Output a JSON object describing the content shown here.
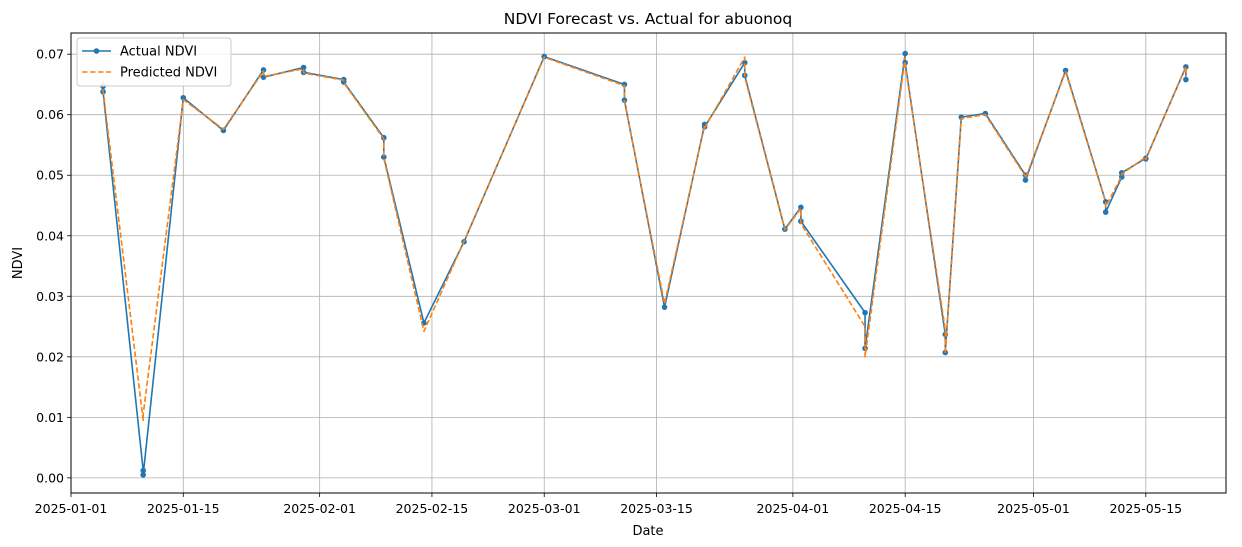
{
  "chart_data": {
    "type": "line",
    "title": "NDVI Forecast vs. Actual for abuonoq",
    "xlabel": "Date",
    "ylabel": "NDVI",
    "xlim": [
      "2025-01-01",
      "2025-05-25"
    ],
    "ylim": [
      -0.0025,
      0.0735
    ],
    "xticks": [
      "2025-01-01",
      "2025-01-15",
      "2025-02-01",
      "2025-02-15",
      "2025-03-01",
      "2025-03-15",
      "2025-04-01",
      "2025-04-15",
      "2025-05-01",
      "2025-05-15"
    ],
    "yticks": [
      0.0,
      0.01,
      0.02,
      0.03,
      0.04,
      0.05,
      0.06,
      0.07
    ],
    "ytick_labels": [
      "0.00",
      "0.01",
      "0.02",
      "0.03",
      "0.04",
      "0.05",
      "0.06",
      "0.07"
    ],
    "grid": true,
    "legend_position": "top-left",
    "series": [
      {
        "name": "Actual NDVI",
        "color": "#1f77b4",
        "style": "solid",
        "marker": "circle",
        "points": [
          [
            "2025-01-05",
            0.0647
          ],
          [
            "2025-01-05",
            0.0638
          ],
          [
            "2025-01-10",
            0.0012
          ],
          [
            "2025-01-10",
            0.0005
          ],
          [
            "2025-01-15",
            0.0628
          ],
          [
            "2025-01-20",
            0.0574
          ],
          [
            "2025-01-25",
            0.0674
          ],
          [
            "2025-01-25",
            0.0662
          ],
          [
            "2025-01-30",
            0.0678
          ],
          [
            "2025-01-30",
            0.067
          ],
          [
            "2025-02-04",
            0.0658
          ],
          [
            "2025-02-04",
            0.0654
          ],
          [
            "2025-02-09",
            0.0562
          ],
          [
            "2025-02-09",
            0.053
          ],
          [
            "2025-02-14",
            0.0256
          ],
          [
            "2025-02-19",
            0.039
          ],
          [
            "2025-03-01",
            0.0696
          ],
          [
            "2025-03-11",
            0.065
          ],
          [
            "2025-03-11",
            0.0624
          ],
          [
            "2025-03-16",
            0.0282
          ],
          [
            "2025-03-21",
            0.0584
          ],
          [
            "2025-03-21",
            0.058
          ],
          [
            "2025-03-26",
            0.0686
          ],
          [
            "2025-03-26",
            0.0665
          ],
          [
            "2025-03-31",
            0.0411
          ],
          [
            "2025-04-02",
            0.0447
          ],
          [
            "2025-04-02",
            0.0424
          ],
          [
            "2025-04-10",
            0.0273
          ],
          [
            "2025-04-10",
            0.0214
          ],
          [
            "2025-04-15",
            0.0701
          ],
          [
            "2025-04-15",
            0.0686
          ],
          [
            "2025-04-20",
            0.0237
          ],
          [
            "2025-04-20",
            0.0207
          ],
          [
            "2025-04-22",
            0.0596
          ],
          [
            "2025-04-25",
            0.0602
          ],
          [
            "2025-04-30",
            0.05
          ],
          [
            "2025-04-30",
            0.0492
          ],
          [
            "2025-05-05",
            0.0673
          ],
          [
            "2025-05-10",
            0.0456
          ],
          [
            "2025-05-10",
            0.0439
          ],
          [
            "2025-05-12",
            0.0497
          ],
          [
            "2025-05-12",
            0.0504
          ],
          [
            "2025-05-15",
            0.0528
          ],
          [
            "2025-05-15",
            0.0527
          ],
          [
            "2025-05-20",
            0.0679
          ],
          [
            "2025-05-20",
            0.0658
          ]
        ]
      },
      {
        "name": "Predicted NDVI",
        "color": "#ff7f0e",
        "style": "dashed",
        "marker": "none",
        "points": [
          [
            "2025-01-05",
            0.0655
          ],
          [
            "2025-01-05",
            0.064
          ],
          [
            "2025-01-10",
            0.0095
          ],
          [
            "2025-01-10",
            0.0105
          ],
          [
            "2025-01-15",
            0.0625
          ],
          [
            "2025-01-20",
            0.0576
          ],
          [
            "2025-01-25",
            0.0672
          ],
          [
            "2025-01-25",
            0.0663
          ],
          [
            "2025-01-30",
            0.0676
          ],
          [
            "2025-01-30",
            0.0669
          ],
          [
            "2025-02-04",
            0.0657
          ],
          [
            "2025-02-04",
            0.0653
          ],
          [
            "2025-02-09",
            0.056
          ],
          [
            "2025-02-09",
            0.0528
          ],
          [
            "2025-02-14",
            0.0242
          ],
          [
            "2025-02-19",
            0.0391
          ],
          [
            "2025-03-01",
            0.0695
          ],
          [
            "2025-03-11",
            0.0648
          ],
          [
            "2025-03-11",
            0.0622
          ],
          [
            "2025-03-16",
            0.0288
          ],
          [
            "2025-03-21",
            0.0582
          ],
          [
            "2025-03-21",
            0.0578
          ],
          [
            "2025-03-26",
            0.0695
          ],
          [
            "2025-03-26",
            0.0662
          ],
          [
            "2025-03-31",
            0.041
          ],
          [
            "2025-04-02",
            0.0445
          ],
          [
            "2025-04-02",
            0.042
          ],
          [
            "2025-04-10",
            0.025
          ],
          [
            "2025-04-10",
            0.02
          ],
          [
            "2025-04-15",
            0.0695
          ],
          [
            "2025-04-15",
            0.0682
          ],
          [
            "2025-04-20",
            0.0245
          ],
          [
            "2025-04-20",
            0.0205
          ],
          [
            "2025-04-22",
            0.0594
          ],
          [
            "2025-04-25",
            0.06
          ],
          [
            "2025-04-30",
            0.0498
          ],
          [
            "2025-04-30",
            0.0495
          ],
          [
            "2025-05-05",
            0.0671
          ],
          [
            "2025-05-10",
            0.0455
          ],
          [
            "2025-05-10",
            0.0448
          ],
          [
            "2025-05-12",
            0.0499
          ],
          [
            "2025-05-12",
            0.0502
          ],
          [
            "2025-05-15",
            0.053
          ],
          [
            "2025-05-15",
            0.0526
          ],
          [
            "2025-05-20",
            0.068
          ],
          [
            "2025-05-20",
            0.0662
          ]
        ]
      }
    ]
  }
}
